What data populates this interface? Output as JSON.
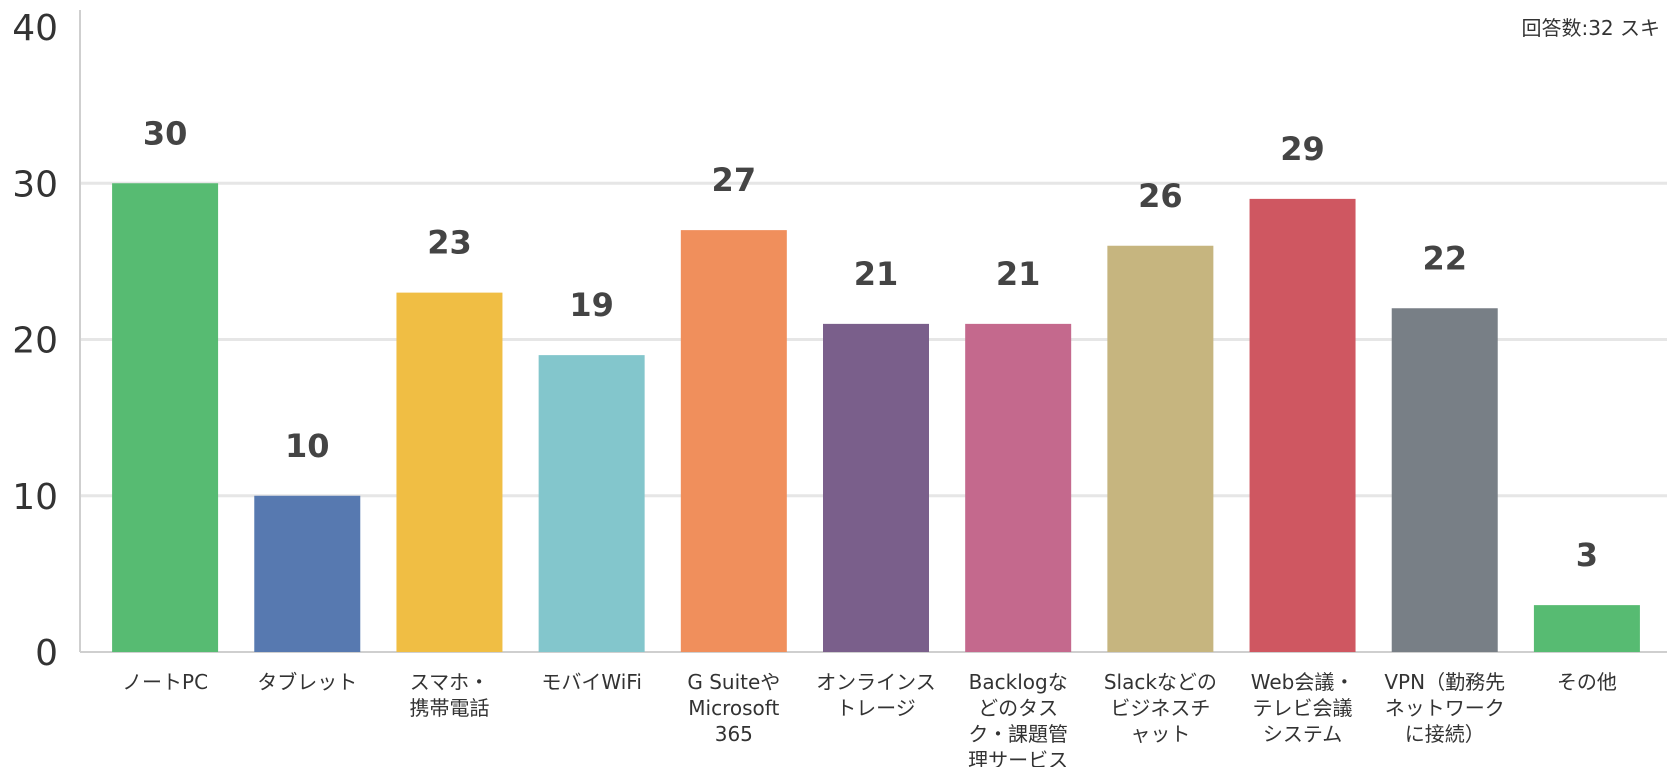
{
  "chart_data": {
    "type": "bar",
    "note": "回答数:32 スキ",
    "categories": [
      [
        "ノートPC"
      ],
      [
        "タブレット"
      ],
      [
        "スマホ・",
        "携帯電話"
      ],
      [
        "モバイWiFi"
      ],
      [
        "G Suiteや",
        "Microsoft",
        "365"
      ],
      [
        "オンラインス",
        "トレージ"
      ],
      [
        "Backlogな",
        "どのタス",
        "ク・課題管",
        "理サービス"
      ],
      [
        "Slackなどの",
        "ビジネスチ",
        "ャット"
      ],
      [
        "Web会議・",
        "テレビ会議",
        "システム"
      ],
      [
        "VPN（勤務先",
        "ネットワーク",
        "に接続）"
      ],
      [
        "その他"
      ]
    ],
    "values": [
      30,
      10,
      23,
      19,
      27,
      21,
      21,
      26,
      29,
      22,
      3
    ],
    "colors": [
      "#57bb72",
      "#5779b0",
      "#f0be44",
      "#83c6cc",
      "#f08f5c",
      "#7a5f8b",
      "#c4698d",
      "#c6b57f",
      "#cf5761",
      "#787f86",
      "#57bb72"
    ],
    "ylim": [
      0,
      40
    ],
    "yticks": [
      0,
      10,
      20,
      30,
      40
    ],
    "grid": true,
    "legend": "none"
  }
}
